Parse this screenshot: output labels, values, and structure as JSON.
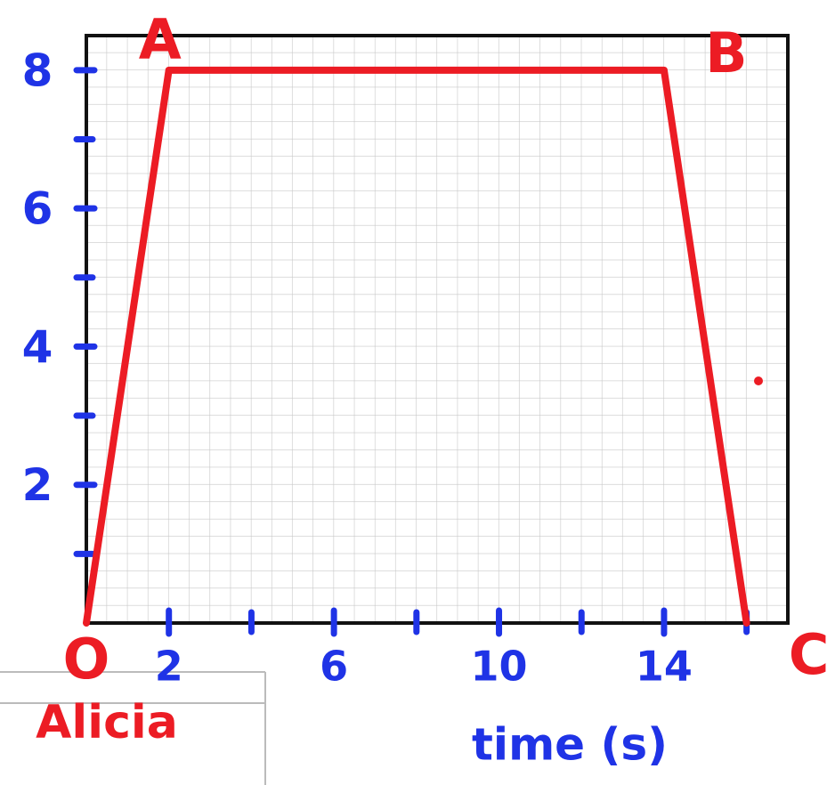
{
  "chart_data": {
    "type": "line",
    "x_label": "time (s)",
    "x": [
      0,
      2,
      14,
      16
    ],
    "series": [
      {
        "color": "#ec1c24",
        "values": [
          0,
          8,
          8,
          0
        ]
      }
    ],
    "point_labels": [
      "O",
      "A",
      "B",
      "C"
    ],
    "xlim": [
      0,
      17
    ],
    "ylim": [
      0,
      8.5
    ],
    "xticks": [
      2,
      6,
      10,
      14
    ],
    "yticks": [
      2,
      4,
      6,
      8
    ],
    "xminor": [
      4,
      8,
      12,
      16
    ],
    "yminor": [
      1,
      3,
      5,
      7
    ],
    "tick_color": "#1f33e6",
    "note": "Alicia"
  }
}
